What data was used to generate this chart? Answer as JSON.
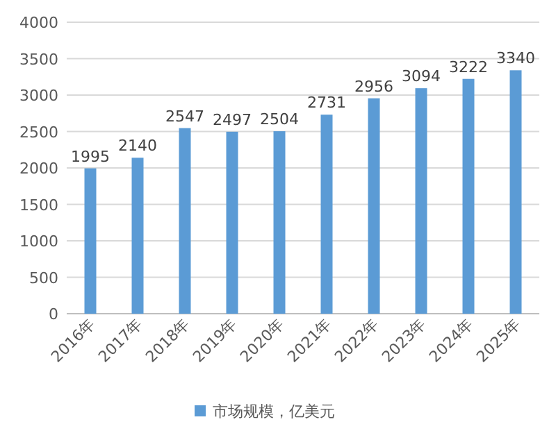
{
  "chart_data": {
    "type": "bar",
    "categories": [
      "2016年",
      "2017年",
      "2018年",
      "2019年",
      "2020年",
      "2021年",
      "2022年",
      "2023年",
      "2024年",
      "2025年"
    ],
    "series": [
      {
        "name": "市场规模，亿美元",
        "color": "#5b9bd5",
        "values": [
          1995,
          2140,
          2547,
          2497,
          2504,
          2731,
          2956,
          3094,
          3222,
          3340
        ]
      }
    ],
    "ylim": [
      0,
      4000
    ],
    "yticks": [
      0,
      500,
      1000,
      1500,
      2000,
      2500,
      3000,
      3500,
      4000
    ],
    "grid": "y",
    "data_labels": true,
    "legend": "bottom"
  }
}
